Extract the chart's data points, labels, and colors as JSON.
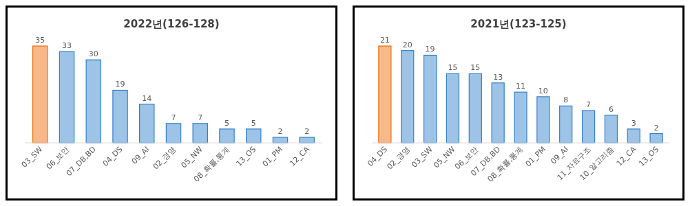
{
  "chart_data": [
    {
      "type": "bar",
      "title": "2022년(126-128)",
      "categories": [
        "03_SW",
        "06_보안",
        "07_DB,BD",
        "04_DS",
        "09_AI",
        "02_경영",
        "05_NW",
        "08_확률,통계",
        "13_OS",
        "01_PM",
        "12_CA"
      ],
      "values": [
        35,
        33,
        30,
        19,
        14,
        7,
        7,
        5,
        5,
        2,
        2
      ],
      "colors": [
        "#f8b98a",
        "#9dc3e6",
        "#9dc3e6",
        "#9dc3e6",
        "#9dc3e6",
        "#9dc3e6",
        "#9dc3e6",
        "#9dc3e6",
        "#9dc3e6",
        "#9dc3e6",
        "#9dc3e6"
      ],
      "data_labels": true
    },
    {
      "type": "bar",
      "title": "2021년(123-125)",
      "categories": [
        "04_DS",
        "02_경영",
        "03_SW",
        "05_NW",
        "06_보안",
        "07_DB,BD",
        "08_확률,통계",
        "01_PM",
        "09_AI",
        "11_자료구조",
        "10_알고리즘",
        "12_CA",
        "13_OS"
      ],
      "values": [
        21,
        20,
        19,
        15,
        15,
        13,
        11,
        10,
        8,
        7,
        6,
        3,
        2
      ],
      "colors": [
        "#f8b98a",
        "#9dc3e6",
        "#9dc3e6",
        "#9dc3e6",
        "#9dc3e6",
        "#9dc3e6",
        "#9dc3e6",
        "#9dc3e6",
        "#9dc3e6",
        "#9dc3e6",
        "#9dc3e6",
        "#9dc3e6",
        "#9dc3e6"
      ],
      "data_labels": true
    }
  ]
}
